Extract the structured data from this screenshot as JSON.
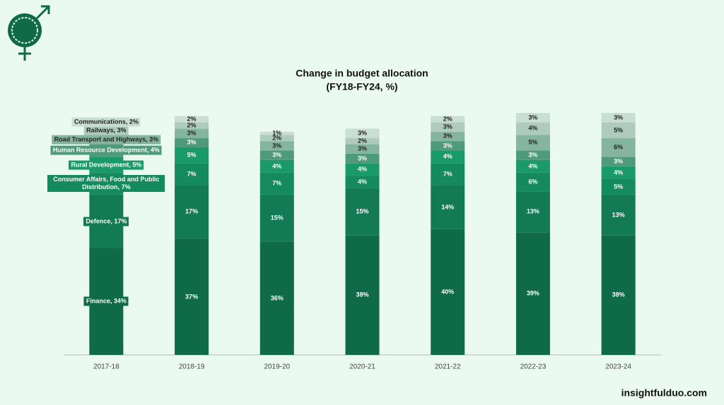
{
  "chart_data": {
    "type": "stacked_bar",
    "title": "Change in budget allocation",
    "subtitle": "(FY18-FY24, %)",
    "categories": [
      "2017-18",
      "2018-19",
      "2019-20",
      "2020-21",
      "2021-22",
      "2022-23",
      "2023-24"
    ],
    "series": [
      {
        "color": "#0e6a49",
        "values": [
          34,
          37,
          36,
          38,
          40,
          39,
          38
        ],
        "value_labels": [
          "Finance, 34%",
          "37%",
          "36%",
          "38%",
          "40%",
          "39%",
          "38%"
        ]
      },
      {
        "color": "#127a54",
        "values": [
          17,
          17,
          15,
          15,
          14,
          13,
          13
        ],
        "value_labels": [
          "Defence, 17%",
          "17%",
          "15%",
          "15%",
          "14%",
          "13%",
          "13%"
        ]
      },
      {
        "color": "#168a5f",
        "values": [
          7,
          7,
          7,
          4,
          7,
          6,
          5
        ],
        "value_labels": [
          "Consumer Affairs, Food and Public Distribution, 7%",
          "7%",
          "7%",
          "4%",
          "7%",
          "6%",
          "5%"
        ]
      },
      {
        "color": "#1b9a69",
        "values": [
          5,
          5,
          4,
          4,
          4,
          4,
          4
        ],
        "value_labels": [
          "Rural Development, 5%",
          "5%",
          "4%",
          "4%",
          "4%",
          "4%",
          "4%"
        ]
      },
      {
        "color": "#4f9a7a",
        "values": [
          4,
          3,
          3,
          3,
          3,
          3,
          3
        ],
        "value_labels": [
          "Human Resource Development, 4%",
          "3%",
          "3%",
          "3%",
          "3%",
          "3%",
          "3%"
        ]
      },
      {
        "color": "#86b59f",
        "values": [
          3,
          3,
          3,
          3,
          3,
          5,
          6
        ],
        "value_labels": [
          "Road Transport and Highways, 3%",
          "3%",
          "3%",
          "3%",
          "3%",
          "5%",
          "6%"
        ]
      },
      {
        "color": "#aecbbd",
        "values": [
          3,
          2,
          2,
          2,
          3,
          4,
          5
        ],
        "value_labels": [
          "Railways, 3%",
          "2%",
          "2%",
          "2%",
          "3%",
          "4%",
          "5%"
        ]
      },
      {
        "color": "#cadfd4",
        "values": [
          2,
          2,
          1,
          3,
          2,
          3,
          3
        ],
        "value_labels": [
          "Communications, 2%",
          "2%",
          "1%",
          "3%",
          "2%",
          "3%",
          "3%"
        ]
      }
    ],
    "watermark": "insightfulduo.com"
  }
}
